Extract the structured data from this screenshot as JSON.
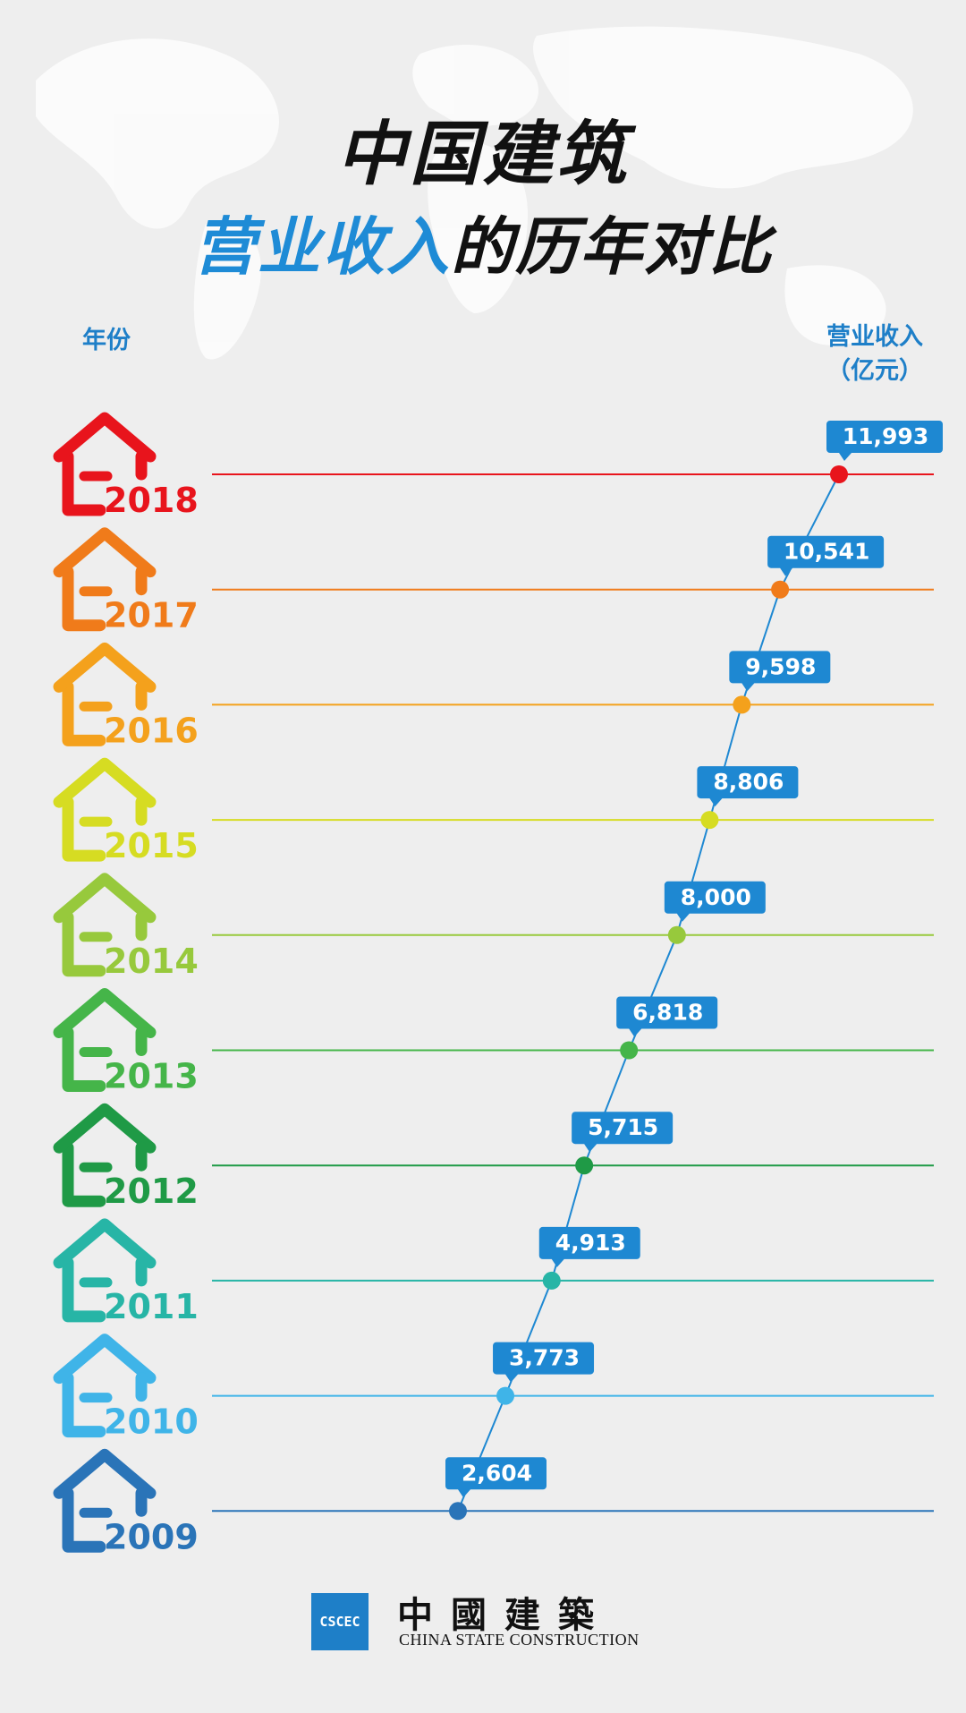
{
  "header": {
    "title_line1": "中国建筑",
    "title_line2_highlight": "营业收入",
    "title_line2_rest": "的历年对比",
    "left_column_label": "年份",
    "right_column_label_line1": "营业收入",
    "right_column_label_line2": "（亿元）"
  },
  "chart_data": {
    "type": "line",
    "x": [
      "2018",
      "2017",
      "2016",
      "2015",
      "2014",
      "2013",
      "2012",
      "2011",
      "2010",
      "2009"
    ],
    "values": [
      11993,
      10541,
      9598,
      8806,
      8000,
      6818,
      5715,
      4913,
      3773,
      2604
    ],
    "labels": [
      "11,993",
      "10,541",
      "9,598",
      "8,806",
      "8,000",
      "6,818",
      "5,715",
      "4,913",
      "3,773",
      "2,604"
    ],
    "year_colors": [
      "#e8141c",
      "#f07b1a",
      "#f4a11c",
      "#d6dc22",
      "#97c93c",
      "#45b549",
      "#1f9a46",
      "#27b5a6",
      "#3fb4e8",
      "#2a74b8"
    ],
    "line_color": "#1e88d2",
    "label_box_color": "#1e88d2",
    "icon": "house-icon"
  },
  "footer": {
    "logo_mark_text": "CSCEC",
    "company_cn": "中國建築",
    "company_en": "CHINA STATE CONSTRUCTION"
  }
}
